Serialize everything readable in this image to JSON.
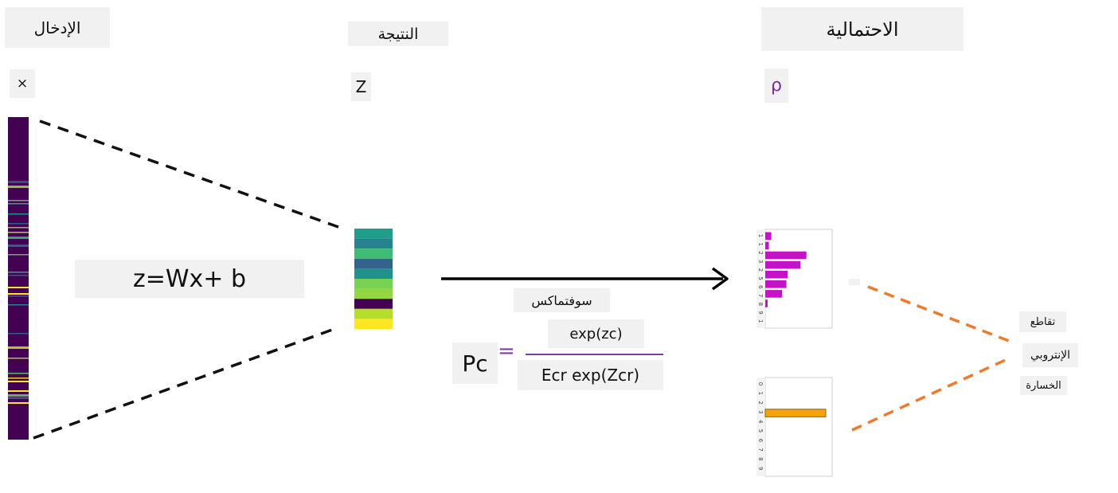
{
  "headers": {
    "input": "الإدخال",
    "logits": "النتيجة",
    "probability": "الاحتمالية"
  },
  "symbols": {
    "input": "×",
    "logits": "Z",
    "probability": "ρ"
  },
  "equation": "z=Wx+ b",
  "softmax": {
    "label": "سوفتماكس",
    "lhs": "Pc",
    "equals": "=",
    "numerator": "exp(zc)",
    "denominator": "Ecr exp(Zcr)"
  },
  "loss": {
    "label_line1": "تقاطع",
    "label_line2": "الإنتروبي",
    "label_line3": "الخسارة"
  },
  "colors": {
    "input_strip_base": "#440154",
    "probability_bars": "#c312c8",
    "target_bar": "#f7a10c",
    "dashed_left": "#111111",
    "dashed_right": "#ec7b2f",
    "fraction_line": "#7d3aa8",
    "probability_icon": "#7a2c9c"
  },
  "input_vector": {
    "colors": [
      "#440154",
      "#1fa187",
      "#fde725",
      "#35b779",
      "#31688e",
      "#90d743",
      "#3b528b",
      "#21918c",
      "#5ec962",
      "#bade28"
    ]
  },
  "logit_vector": {
    "colors": [
      "#1f9e89",
      "#26828e",
      "#3fbc73",
      "#33638d",
      "#21918c",
      "#7ad151",
      "#90d743",
      "#440154",
      "#b5de2b",
      "#fde725"
    ]
  },
  "chart_data": [
    {
      "type": "bar",
      "orientation": "horizontal",
      "categories": [
        "0",
        "1",
        "2",
        "3",
        "4",
        "5",
        "6",
        "7",
        "8",
        "9"
      ],
      "values": [
        0.1,
        0.06,
        0.68,
        0.58,
        0.37,
        0.35,
        0.28,
        0.04,
        0.0,
        0.0
      ],
      "tick_labels_shown": [
        "1",
        "1",
        "2",
        "3",
        "2",
        "5",
        "6",
        "7",
        "8",
        "9",
        "1"
      ],
      "xlim": [
        0,
        1
      ]
    },
    {
      "type": "bar",
      "orientation": "horizontal",
      "categories": [
        "0",
        "1",
        "2",
        "3",
        "4",
        "5",
        "6",
        "7",
        "8",
        "9"
      ],
      "values": [
        0,
        0,
        0,
        1,
        0,
        0,
        0,
        0,
        0,
        0
      ],
      "tick_labels_shown": [
        "0",
        "1",
        "2",
        "3",
        "4",
        "5",
        "6",
        "7",
        "8",
        "9"
      ],
      "xlim": [
        0,
        1
      ]
    }
  ]
}
